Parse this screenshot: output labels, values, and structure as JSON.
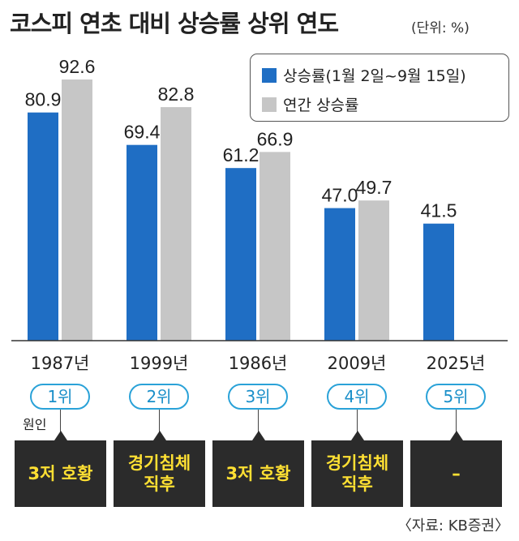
{
  "title": "코스피 연초 대비 상승률 상위 연도",
  "unit": "(단위: %)",
  "colors": {
    "blue": "#1f6ec4",
    "gray": "#c6c6c6",
    "badge": "#2aa2d8",
    "cause_bg": "#2b2b2b",
    "cause_text": "#ffe033"
  },
  "chart_data": {
    "type": "bar",
    "categories": [
      "1987년",
      "1999년",
      "1986년",
      "2009년",
      "2025년"
    ],
    "series": [
      {
        "name": "상승률(1월 2일~9월 15일)",
        "values": [
          80.9,
          69.4,
          61.2,
          47.0,
          41.5
        ],
        "labels": [
          "80.9",
          "69.4",
          "61.2",
          "47.0",
          "41.5"
        ]
      },
      {
        "name": "연간 상승률",
        "values": [
          92.6,
          82.8,
          66.9,
          49.7,
          null
        ],
        "labels": [
          "92.6",
          "82.8",
          "66.9",
          "49.7",
          ""
        ]
      }
    ],
    "ylim": [
      0,
      92.6
    ],
    "legend": "top-right",
    "grid": false
  },
  "ranks": [
    "1위",
    "2위",
    "3위",
    "4위",
    "5위"
  ],
  "cause_label": "원인",
  "causes": [
    "3저 호황",
    "경기침체\n직후",
    "3저 호황",
    "경기침체\n직후",
    "–"
  ],
  "source": "〈자료: KB증권〉"
}
